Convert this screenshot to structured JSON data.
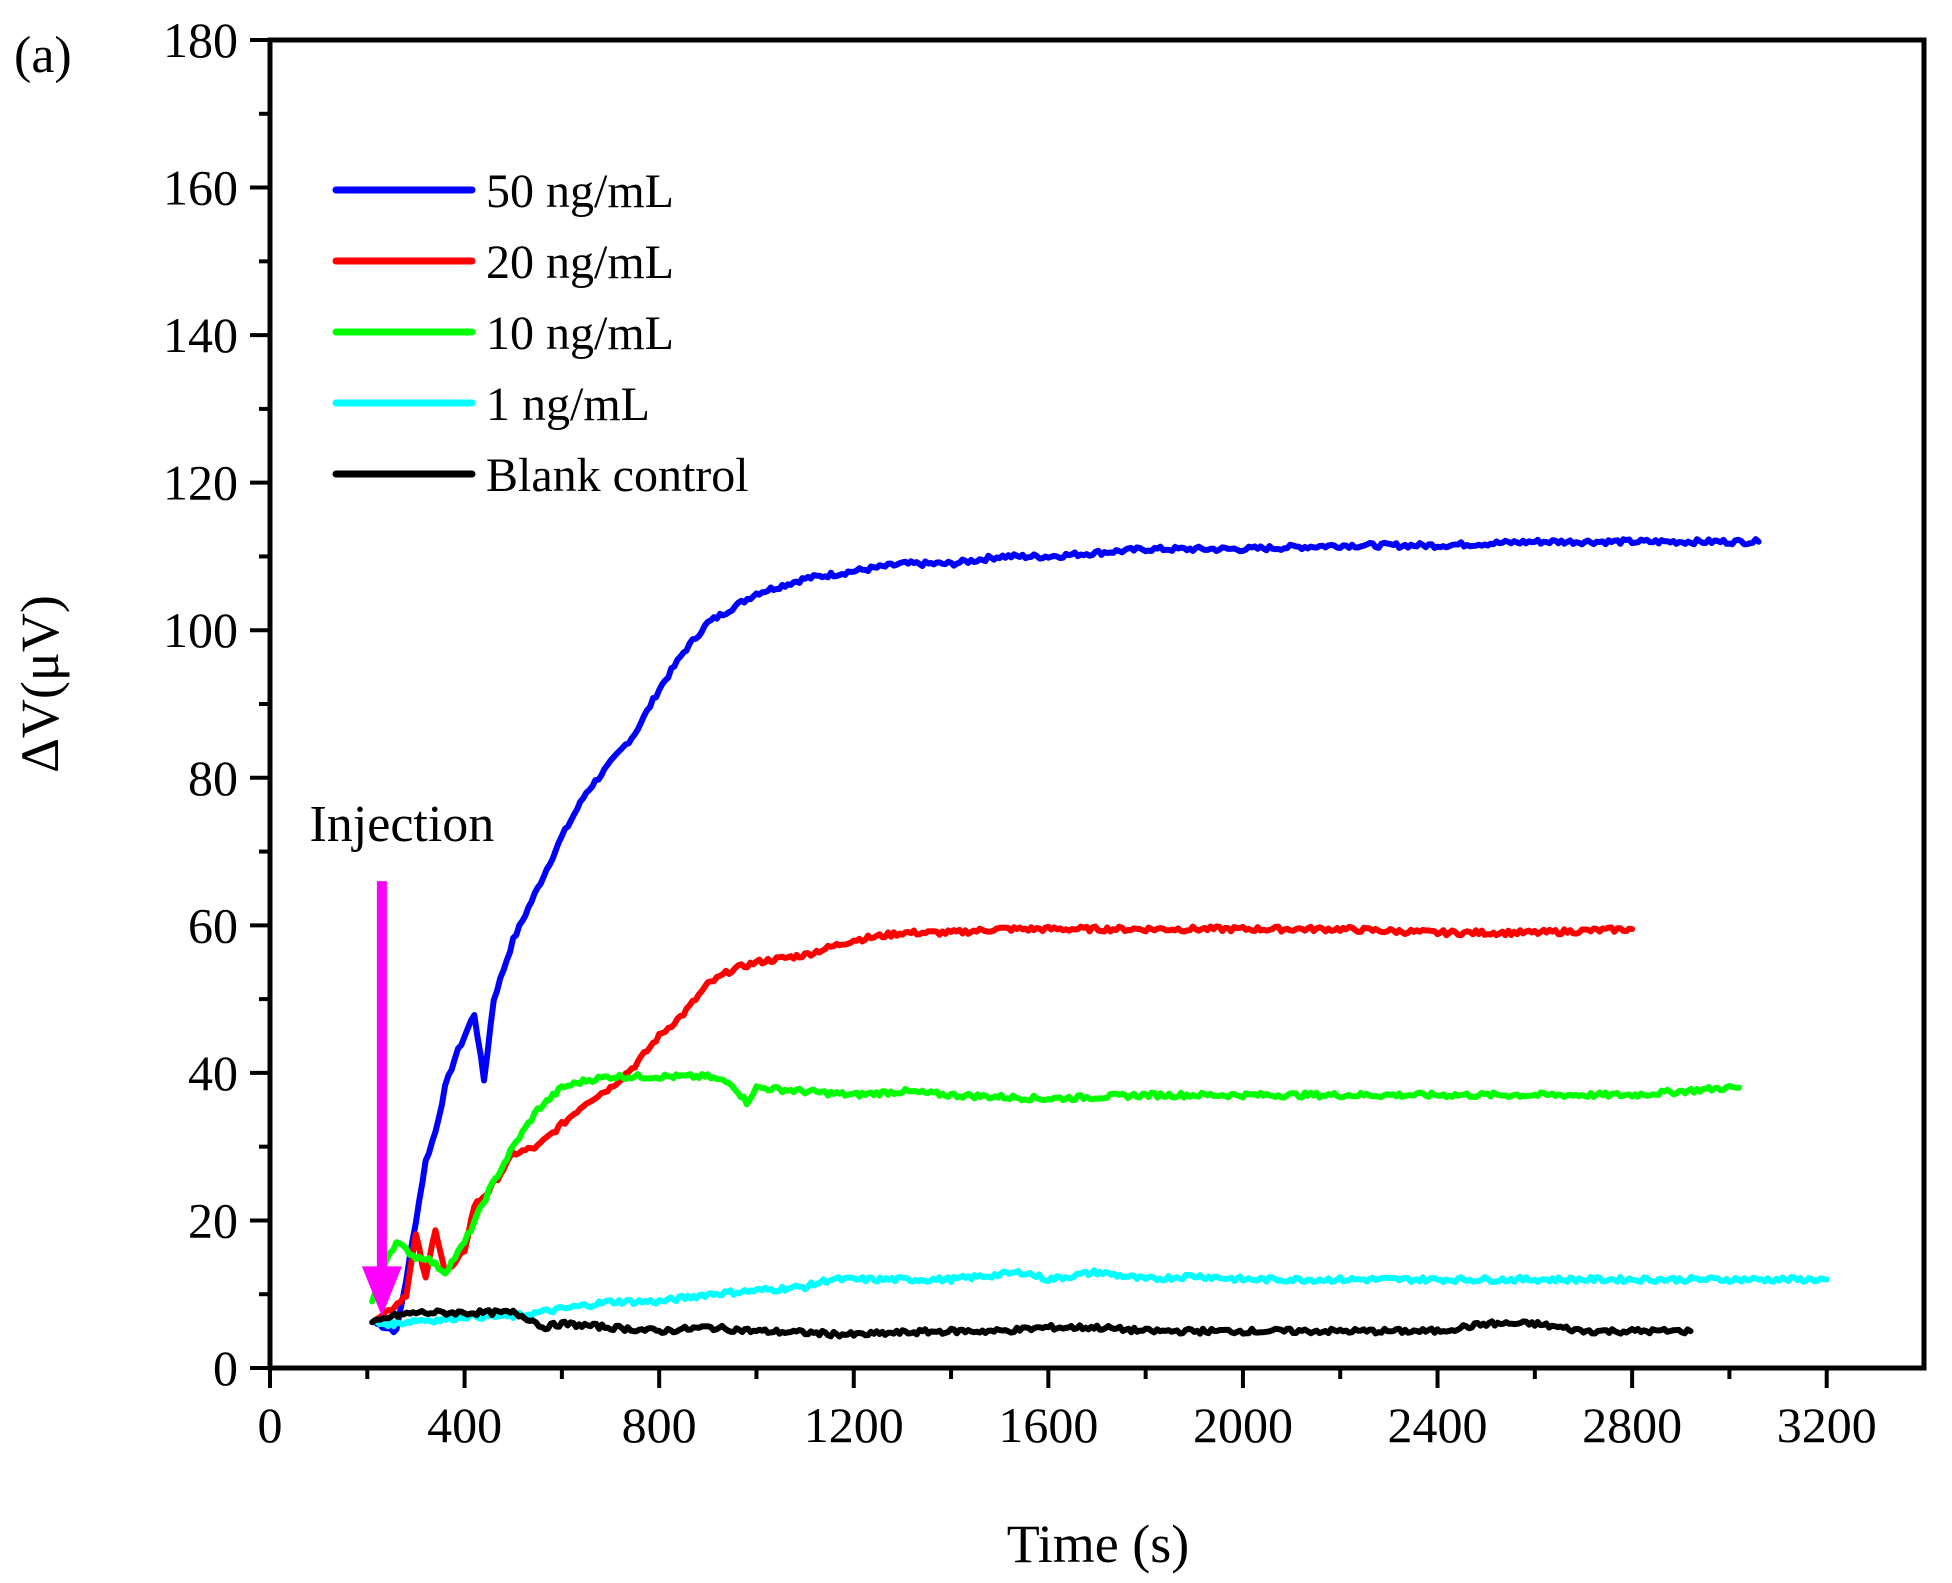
{
  "panel_label": "(a)",
  "chart_data": {
    "type": "line",
    "title": "",
    "xlabel": "Time (s)",
    "ylabel": "ΔV(μV)",
    "xlim": [
      0,
      3400
    ],
    "ylim": [
      0,
      180
    ],
    "xticks": [
      0,
      400,
      800,
      1200,
      1600,
      2000,
      2400,
      2800,
      3200
    ],
    "yticks": [
      0,
      20,
      40,
      60,
      80,
      100,
      120,
      140,
      160,
      180
    ],
    "legend_position": "top-left",
    "annotation": {
      "text": "Injection",
      "x": 230,
      "arrow_from_y": 66,
      "arrow_to_y": 7,
      "color": "#ff00ff"
    },
    "series": [
      {
        "name": "50 ng/mL",
        "color": "#0000ff",
        "x": [
          220,
          260,
          280,
          300,
          320,
          340,
          360,
          380,
          400,
          420,
          440,
          460,
          480,
          500,
          550,
          600,
          650,
          700,
          750,
          800,
          850,
          900,
          950,
          1000,
          1100,
          1200,
          1300,
          1400,
          1500,
          1600,
          1800,
          2000,
          2200,
          2400,
          2600,
          2800,
          3000,
          3060
        ],
        "y": [
          6,
          5,
          12,
          20,
          28,
          32,
          38,
          42,
          45,
          48,
          39,
          50,
          54,
          58,
          65,
          72,
          78,
          82,
          86,
          92,
          97,
          101,
          103,
          105,
          107,
          108,
          109,
          109,
          110,
          110,
          111,
          111,
          111.5,
          111.5,
          112,
          112,
          112,
          112
        ]
      },
      {
        "name": "20 ng/mL",
        "color": "#ff0000",
        "x": [
          220,
          250,
          280,
          300,
          320,
          340,
          360,
          380,
          400,
          420,
          450,
          480,
          500,
          550,
          600,
          650,
          700,
          750,
          800,
          850,
          900,
          950,
          1000,
          1100,
          1200,
          1300,
          1400,
          1500,
          1600,
          1800,
          2000,
          2200,
          2400,
          2600,
          2800
        ],
        "y": [
          7,
          8,
          10,
          18,
          12,
          19,
          13,
          14,
          16,
          22,
          24,
          27,
          29,
          30,
          33,
          36,
          38,
          41,
          45,
          48,
          52,
          54,
          55,
          56,
          58,
          59,
          59,
          59.5,
          59.5,
          59.5,
          59.5,
          59.5,
          59,
          59,
          59.5
        ]
      },
      {
        "name": "10 ng/mL",
        "color": "#00ff00",
        "x": [
          210,
          240,
          260,
          280,
          300,
          320,
          340,
          360,
          380,
          400,
          450,
          500,
          550,
          600,
          650,
          700,
          750,
          800,
          900,
          950,
          980,
          1000,
          1100,
          1200,
          1300,
          1400,
          1600,
          1800,
          2000,
          2200,
          2400,
          2600,
          2800,
          3000,
          3020
        ],
        "y": [
          9,
          15,
          17,
          16,
          15,
          15,
          14,
          13,
          15,
          17,
          24,
          30,
          35,
          38,
          39,
          39.5,
          39.5,
          39.5,
          39.5,
          38.5,
          36,
          38,
          37.5,
          37,
          37.5,
          37,
          36.5,
          37,
          37,
          37,
          37,
          37,
          37,
          38,
          38
        ]
      },
      {
        "name": "1 ng/mL",
        "color": "#00ffff",
        "x": [
          220,
          260,
          300,
          350,
          400,
          450,
          500,
          550,
          600,
          700,
          800,
          900,
          1000,
          1100,
          1150,
          1200,
          1400,
          1550,
          1600,
          1700,
          1800,
          1900,
          2000,
          2200,
          2400,
          2600,
          2800,
          3000,
          3200
        ],
        "y": [
          6,
          6,
          6.5,
          6.5,
          7,
          7,
          7,
          7.5,
          8,
          9,
          9,
          10,
          10.5,
          11,
          12,
          12,
          12,
          13,
          12,
          13,
          12,
          12.5,
          12,
          12,
          12,
          12,
          12,
          12,
          12
        ]
      },
      {
        "name": "Blank control",
        "color": "#000000",
        "x": [
          210,
          250,
          300,
          350,
          400,
          450,
          500,
          540,
          560,
          600,
          700,
          800,
          900,
          1000,
          1100,
          1200,
          1300,
          1400,
          1500,
          1600,
          1700,
          1800,
          1900,
          2000,
          2200,
          2400,
          2500,
          2600,
          2700,
          2800,
          2920
        ],
        "y": [
          6,
          7,
          7.5,
          7.5,
          7.5,
          7.5,
          7.5,
          6.5,
          5.5,
          6,
          5.5,
          5,
          5.5,
          5,
          4.8,
          4.5,
          4.8,
          5,
          5,
          5.5,
          5.5,
          5,
          5,
          5,
          5,
          5,
          6,
          6,
          5,
          5,
          5
        ]
      }
    ]
  }
}
